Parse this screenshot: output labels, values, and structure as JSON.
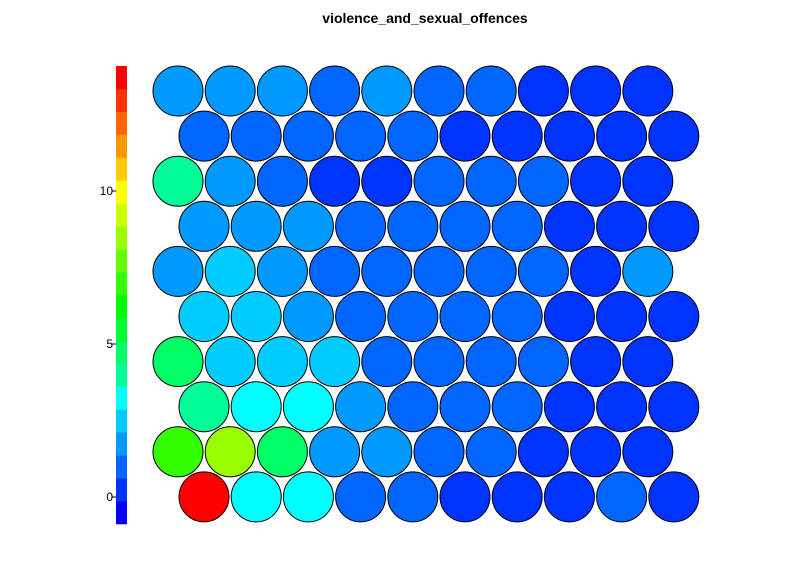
{
  "chart_data": {
    "type": "heatmap",
    "subtype": "som-hexagonal-property-map",
    "title": "violence_and_sexual_offences",
    "colorbar": {
      "ticks": [
        0,
        5,
        10
      ],
      "colors": [
        "#0000ff",
        "#0033ff",
        "#0066ff",
        "#0099ff",
        "#00ccff",
        "#00ffff",
        "#00ff99",
        "#00ff66",
        "#00ff33",
        "#00ff00",
        "#33ff00",
        "#66ff00",
        "#99ff00",
        "#ccff00",
        "#ffff00",
        "#ffcc00",
        "#ff9900",
        "#ff6600",
        "#ff3300",
        "#ff0000"
      ]
    },
    "grid": {
      "rows": 10,
      "cols": 10,
      "row_order": "top-to-bottom"
    },
    "values": [
      [
        1.7,
        1.5,
        1.4,
        0.8,
        1.6,
        0.8,
        0.7,
        0.1,
        0.1,
        0.1
      ],
      [
        0.8,
        0.9,
        0.8,
        0.8,
        0.9,
        0.4,
        0.5,
        0.4,
        0.4,
        0.4
      ],
      [
        4.0,
        1.5,
        0.8,
        0.6,
        0.1,
        1.0,
        1.0,
        0.7,
        0.3,
        0.1
      ],
      [
        1.5,
        1.5,
        1.5,
        1.0,
        0.9,
        0.9,
        0.9,
        0.4,
        0.4,
        0.3
      ],
      [
        2.0,
        2.2,
        1.4,
        0.7,
        0.8,
        0.8,
        0.8,
        0.9,
        0.3,
        1.5
      ],
      [
        2.4,
        2.4,
        1.5,
        0.7,
        0.8,
        0.8,
        0.8,
        0.4,
        0.4,
        0.4
      ],
      [
        5.0,
        2.5,
        2.7,
        2.8,
        0.8,
        0.8,
        0.9,
        0.9,
        0.3,
        0.3
      ],
      [
        3.8,
        3.4,
        3.4,
        1.5,
        0.8,
        0.8,
        0.8,
        0.4,
        0.4,
        0.3
      ],
      [
        7.2,
        8.2,
        5.0,
        1.5,
        1.6,
        0.9,
        0.9,
        0.4,
        0.4,
        0.3
      ],
      [
        14.0,
        3.2,
        3.3,
        0.8,
        0.8,
        0.2,
        0.2,
        0.3,
        0.8,
        0.4
      ]
    ]
  }
}
